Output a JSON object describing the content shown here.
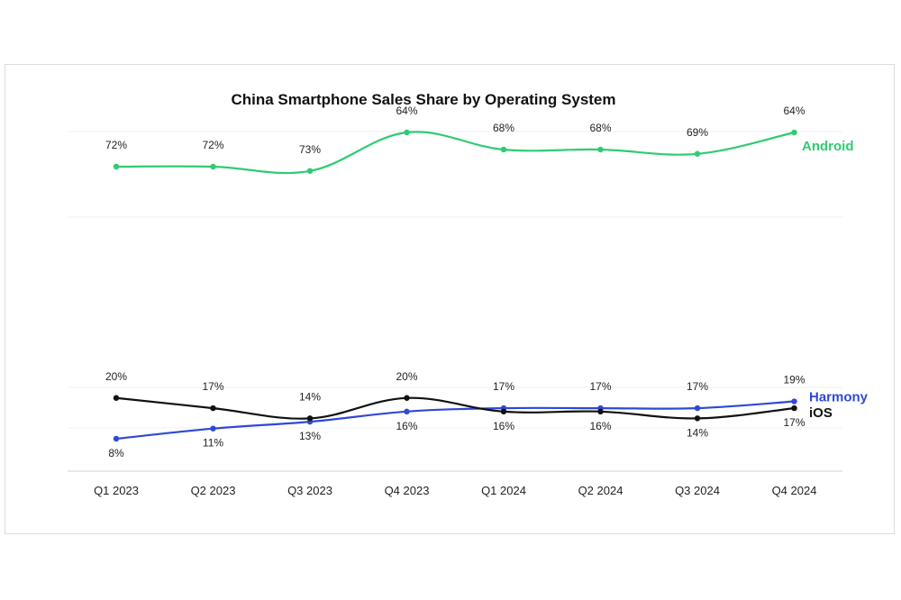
{
  "chart_data": {
    "type": "line",
    "title": "China Smartphone Sales Share by Operating System",
    "xlabel": "",
    "ylabel": "",
    "categories": [
      "Q1 2023",
      "Q2 2023",
      "Q3 2023",
      "Q4 2023",
      "Q1 2024",
      "Q2 2024",
      "Q3 2024",
      "Q4 2024"
    ],
    "value_suffix": "%",
    "grid": false,
    "axis_break": true,
    "series": [
      {
        "name": "Android",
        "color": "#2ecc71",
        "values": [
          72,
          72,
          73,
          64,
          68,
          68,
          69,
          64
        ]
      },
      {
        "name": "Harmony",
        "color": "#2f48d6",
        "values": [
          8,
          11,
          13,
          16,
          17,
          17,
          17,
          19
        ]
      },
      {
        "name": "iOS",
        "color": "#111111",
        "values": [
          20,
          17,
          14,
          20,
          16,
          16,
          14,
          17
        ]
      }
    ]
  }
}
